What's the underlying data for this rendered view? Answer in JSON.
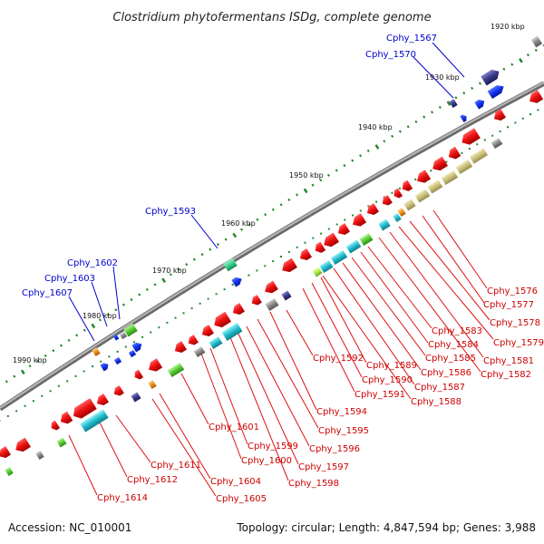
{
  "title": "Clostridium phytofermentans ISDg, complete genome",
  "footer": {
    "accession": "Accession: NC_010001",
    "summary": "Topology: circular; Length: 4,847,594 bp; Genes: 3,988"
  },
  "colors": {
    "backbone": "#888888",
    "ruler_ticks": "#22882a",
    "label_blue": "#0000cc",
    "label_red": "#cc0000",
    "gene_red": "#ee1111",
    "gene_blue": "#1133ee",
    "gene_cyan": "#22bbcc",
    "gene_khaki": "#c8bf7a",
    "gene_green": "#55cc33",
    "gene_navy": "#3a3a88",
    "gene_grey": "#888888"
  },
  "ruler": [
    {
      "label": "1920 kbp"
    },
    {
      "label": "1930 kbp"
    },
    {
      "label": "1940 kbp"
    },
    {
      "label": "1950 kbp"
    },
    {
      "label": "1960 kbp"
    },
    {
      "label": "1970 kbp"
    },
    {
      "label": "1980 kbp"
    },
    {
      "label": "1990 kbp"
    }
  ],
  "labels_blue": [
    {
      "text": "Cphy_1567"
    },
    {
      "text": "Cphy_1570"
    },
    {
      "text": "Cphy_1593"
    },
    {
      "text": "Cphy_1602"
    },
    {
      "text": "Cphy_1603"
    },
    {
      "text": "Cphy_1607"
    }
  ],
  "labels_red": [
    {
      "text": "Cphy_1576"
    },
    {
      "text": "Cphy_1577"
    },
    {
      "text": "Cphy_1578"
    },
    {
      "text": "Cphy_1579"
    },
    {
      "text": "Cphy_1581"
    },
    {
      "text": "Cphy_1582"
    },
    {
      "text": "Cphy_1583"
    },
    {
      "text": "Cphy_1584"
    },
    {
      "text": "Cphy_1585"
    },
    {
      "text": "Cphy_1586"
    },
    {
      "text": "Cphy_1587"
    },
    {
      "text": "Cphy_1588"
    },
    {
      "text": "Cphy_1589"
    },
    {
      "text": "Cphy_1590"
    },
    {
      "text": "Cphy_1591"
    },
    {
      "text": "Cphy_1592"
    },
    {
      "text": "Cphy_1594"
    },
    {
      "text": "Cphy_1595"
    },
    {
      "text": "Cphy_1596"
    },
    {
      "text": "Cphy_1597"
    },
    {
      "text": "Cphy_1598"
    },
    {
      "text": "Cphy_1599"
    },
    {
      "text": "Cphy_1600"
    },
    {
      "text": "Cphy_1601"
    },
    {
      "text": "Cphy_1604"
    },
    {
      "text": "Cphy_1605"
    },
    {
      "text": "Cphy_1611"
    },
    {
      "text": "Cphy_1612"
    },
    {
      "text": "Cphy_1614"
    }
  ]
}
